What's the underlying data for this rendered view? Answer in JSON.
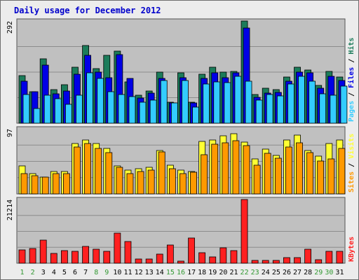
{
  "title": "Daily usage for December 2012",
  "colors": {
    "hits": "#1c7c5a",
    "files": "#0000e6",
    "pages": "#33ccff",
    "visits": "#ffff33",
    "sites": "#ff9900",
    "kbytes": "#ff2020",
    "weekday_label": "#006600",
    "weekend_label": "#339933",
    "plot_bg": "#c0c0c0"
  },
  "chart_data": {
    "type": "bar",
    "categories": [
      "1",
      "2",
      "3",
      "4",
      "5",
      "6",
      "7",
      "8",
      "9",
      "10",
      "11",
      "12",
      "13",
      "14",
      "15",
      "16",
      "17",
      "18",
      "19",
      "20",
      "21",
      "22",
      "23",
      "24",
      "25",
      "26",
      "27",
      "28",
      "29",
      "30",
      "31"
    ],
    "weekend_days": [
      "1",
      "2",
      "8",
      "9",
      "15",
      "16",
      "22",
      "23",
      "29",
      "30"
    ],
    "panels": [
      {
        "id": "hits_files_pages",
        "ymax_label": "292",
        "ymax": 292,
        "side_labels": [
          "Pages",
          "Files",
          "Hits"
        ],
        "series": [
          {
            "name": "Hits",
            "values": [
              136,
              90,
              184,
              96,
              110,
              160,
              222,
              156,
              193,
              205,
              117,
              80,
              91,
              145,
              60,
              144,
              60,
              140,
              160,
              146,
              147,
              292,
              81,
              100,
              96,
              132,
              160,
              152,
              107,
              147,
              132
            ]
          },
          {
            "name": "Files",
            "values": [
              120,
              90,
              165,
              84,
              92,
              140,
              194,
              146,
              130,
              196,
              127,
              72,
              86,
              128,
              57,
              130,
              57,
              128,
              144,
              130,
              144,
              272,
              73,
              86,
              88,
              120,
              146,
              144,
              100,
              134,
              122
            ]
          },
          {
            "name": "Pages",
            "values": [
              82,
              42,
              80,
              69,
              54,
              80,
              143,
              127,
              90,
              81,
              75,
              60,
              66,
              122,
              58,
              122,
              45,
              112,
              117,
              116,
              134,
              120,
              66,
              82,
              77,
              112,
              134,
              120,
              83,
              80,
              105
            ]
          }
        ]
      },
      {
        "id": "visits_sites",
        "ymax_label": "97",
        "ymax": 97,
        "side_labels": [
          "Sites",
          "Visits"
        ],
        "series": [
          {
            "name": "Visits",
            "values": [
              42,
              30,
              25,
              33,
              33,
              75,
              80,
              75,
              68,
              42,
              35,
              38,
              40,
              65,
              43,
              35,
              33,
              78,
              80,
              87,
              90,
              77,
              52,
              67,
              57,
              80,
              88,
              65,
              56,
              75,
              80
            ]
          },
          {
            "name": "Sites",
            "values": [
              30,
              27,
              25,
              30,
              30,
              70,
              75,
              68,
              62,
              40,
              30,
              33,
              35,
              63,
              38,
              30,
              32,
              58,
              74,
              76,
              79,
              72,
              43,
              61,
              53,
              70,
              76,
              62,
              49,
              52,
              68
            ]
          }
        ]
      },
      {
        "id": "kbytes",
        "ymax_label": "21214",
        "ymax": 21214,
        "side_labels": [
          "KBytes"
        ],
        "series": [
          {
            "name": "KBytes",
            "values": [
              4500,
              5000,
              7700,
              3200,
              4300,
              4000,
              5500,
              4700,
              3900,
              10000,
              7300,
              1300,
              1500,
              3000,
              6100,
              800,
              8300,
              3600,
              2000,
              5200,
              4200,
              21214,
              1000,
              1000,
              1000,
              1900,
              1900,
              4600,
              1200,
              3900,
              3900
            ]
          }
        ]
      }
    ]
  }
}
